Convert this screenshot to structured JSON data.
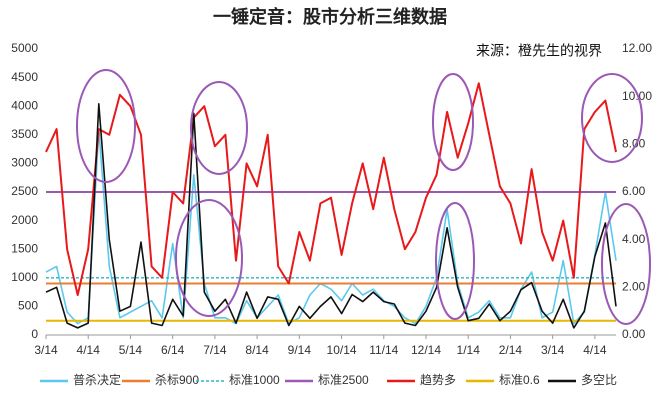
{
  "chart_data": {
    "type": "line",
    "title": "一锤定音：股市分析三维数据",
    "annotation": "来源：橙先生的视界",
    "categories": [
      "3/14",
      null,
      null,
      null,
      "4/14",
      null,
      null,
      null,
      "5/14",
      null,
      null,
      null,
      "6/14",
      null,
      null,
      null,
      "7/14",
      null,
      null,
      null,
      "8/14",
      null,
      null,
      null,
      "9/14",
      null,
      null,
      null,
      "10/14",
      null,
      null,
      null,
      "11/14",
      null,
      null,
      null,
      "12/14",
      null,
      null,
      null,
      "1/14",
      null,
      null,
      null,
      "2/14",
      null,
      null,
      null,
      "3/14",
      null,
      null,
      null,
      "4/14",
      null,
      null
    ],
    "ylim": [
      0,
      5000
    ],
    "yticks": [
      0,
      500,
      1000,
      1500,
      2000,
      2500,
      3000,
      3500,
      4000,
      4500,
      5000
    ],
    "y2lim": [
      0,
      12
    ],
    "y2ticks": [
      {
        "value": 0,
        "label": "0.00"
      },
      {
        "value": 2,
        "label": "2.00"
      },
      {
        "value": 4,
        "label": "4.00"
      },
      {
        "value": 6,
        "label": "6.00"
      },
      {
        "value": 8,
        "label": "8.00"
      },
      {
        "value": 10,
        "label": "10.00"
      },
      {
        "value": 12,
        "label": "12.00"
      }
    ],
    "series": [
      {
        "name": "普杀决定",
        "color": "#5bc8f0",
        "values": [
          1100,
          1200,
          400,
          200,
          300,
          3600,
          1200,
          300,
          400,
          500,
          600,
          300,
          1600,
          300,
          2800,
          900,
          300,
          300,
          200,
          600,
          300,
          500,
          700,
          200,
          300,
          700,
          900,
          800,
          600,
          900,
          700,
          800,
          600,
          500,
          300,
          200,
          500,
          1000,
          2200,
          900,
          300,
          400,
          600,
          300,
          300,
          800,
          1100,
          300,
          400,
          1300,
          200,
          400,
          1400,
          2500,
          1300
        ]
      },
      {
        "name": "杀标900",
        "color": "#ed7d31",
        "value": 900
      },
      {
        "name": "标准1000",
        "color": "#2bb5c0",
        "value": 1000,
        "dashed": true
      },
      {
        "name": "标准2500",
        "color": "#9b59b6",
        "value": 2500
      },
      {
        "name": "趋势多",
        "color": "#e8191b",
        "values": [
          3200,
          3600,
          1500,
          700,
          1500,
          3600,
          3500,
          4200,
          4000,
          3500,
          1200,
          1000,
          2500,
          2300,
          3800,
          4000,
          3300,
          3500,
          1300,
          3000,
          2600,
          3500,
          1200,
          900,
          1800,
          1300,
          2300,
          2400,
          1400,
          2300,
          3000,
          2200,
          3100,
          2200,
          1500,
          1800,
          2400,
          2800,
          3900,
          3100,
          3700,
          4400,
          3500,
          2600,
          2300,
          1600,
          2900,
          1800,
          1300,
          2000,
          1000,
          3600,
          3900,
          4100,
          3200
        ]
      },
      {
        "name": "标准0.6",
        "color": "#e6b800",
        "value": 0.6,
        "axis": "y2"
      },
      {
        "name": "多空比",
        "color": "#111111",
        "axis": "y2",
        "values": [
          1.8,
          2.0,
          0.5,
          0.3,
          0.5,
          9.7,
          4.0,
          1.0,
          1.2,
          3.9,
          0.5,
          0.4,
          1.5,
          0.8,
          9.3,
          1.8,
          1.0,
          1.5,
          0.5,
          1.8,
          0.7,
          1.6,
          1.5,
          0.4,
          1.2,
          0.7,
          1.2,
          1.6,
          0.9,
          1.7,
          1.4,
          1.8,
          1.4,
          1.3,
          0.5,
          0.4,
          1.0,
          2.0,
          4.5,
          2.0,
          0.6,
          0.7,
          1.3,
          0.6,
          1.0,
          1.9,
          2.2,
          1.0,
          0.5,
          1.5,
          0.3,
          1.0,
          3.3,
          4.7,
          1.2
        ]
      }
    ]
  }
}
